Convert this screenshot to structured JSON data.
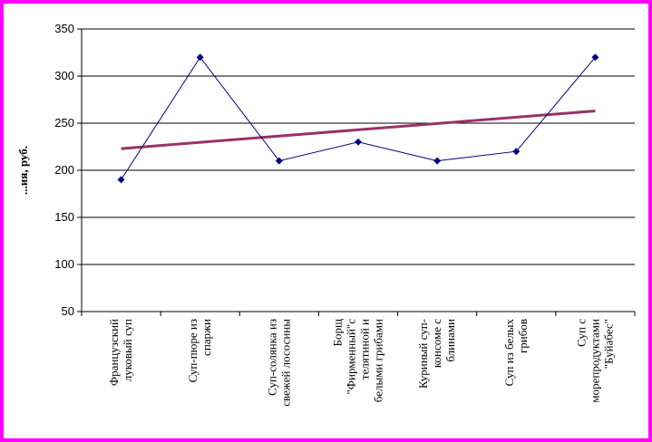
{
  "chart_data": {
    "type": "line",
    "ylabel": "...ия, руб.",
    "ylim": [
      50,
      350
    ],
    "yticks": [
      50,
      100,
      150,
      200,
      250,
      300,
      350
    ],
    "grid": true,
    "categories": [
      [
        "Французский",
        "луковый суп"
      ],
      [
        "Суп-пюре из",
        "спаржи"
      ],
      [
        "Суп-солянка из",
        "свежей лососины"
      ],
      [
        "Борщ",
        "\"Фирменный\"с",
        "телятиной и",
        "белыми грибами"
      ],
      [
        "Куриный суп-",
        "консоме с",
        "блинами"
      ],
      [
        "Суп из белых",
        "грибов"
      ],
      [
        "Суп с",
        "морепродуктами",
        "\"Буйабес\""
      ]
    ],
    "series": [
      {
        "values": [
          190,
          320,
          210,
          230,
          210,
          220,
          320
        ],
        "color": "#000080",
        "marker": "diamond"
      }
    ],
    "trendline": {
      "type": "linear",
      "color": "#993366",
      "start": 223,
      "end": 263
    }
  }
}
